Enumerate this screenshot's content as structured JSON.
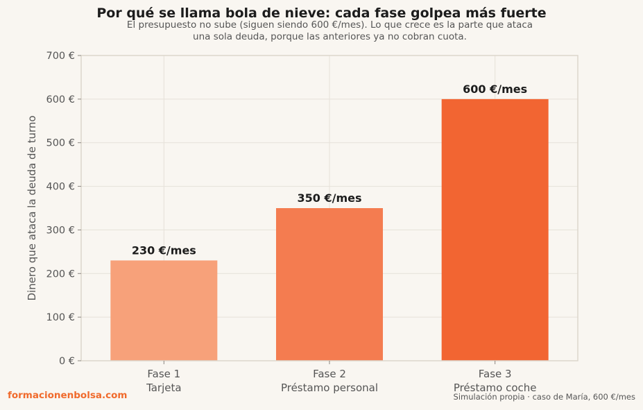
{
  "header": {
    "title": "Por qué se llama bola de nieve: cada fase golpea más fuerte",
    "subtitle_line1": "El presupuesto no sube (siguen siendo 600 €/mes). Lo que crece es la parte que ataca",
    "subtitle_line2": "una sola deuda, porque las anteriores ya no cobran cuota."
  },
  "footer": {
    "brand": "formacionenbolsa.com",
    "source": "Simulación propia · caso de María, 600 €/mes"
  },
  "chart_data": {
    "type": "bar",
    "title": "Por qué se llama bola de nieve: cada fase golpea más fuerte",
    "ylabel": "Dinero que ataca la deuda de turno",
    "xlabel": "",
    "categories": [
      [
        "Fase 1",
        "Tarjeta"
      ],
      [
        "Fase 2",
        "Préstamo personal"
      ],
      [
        "Fase 3",
        "Préstamo coche"
      ]
    ],
    "values": [
      230,
      350,
      600
    ],
    "data_labels": [
      "230 €/mes",
      "350 €/mes",
      "600 €/mes"
    ],
    "colors": [
      "#f7a17a",
      "#f47c50",
      "#f26532"
    ],
    "ylim": [
      0,
      700
    ],
    "yticks": [
      0,
      100,
      200,
      300,
      400,
      500,
      600,
      700
    ],
    "ytick_labels": [
      "0 €",
      "100 €",
      "200 €",
      "300 €",
      "400 €",
      "500 €",
      "600 €",
      "700 €"
    ],
    "grid": true,
    "legend": "none"
  }
}
